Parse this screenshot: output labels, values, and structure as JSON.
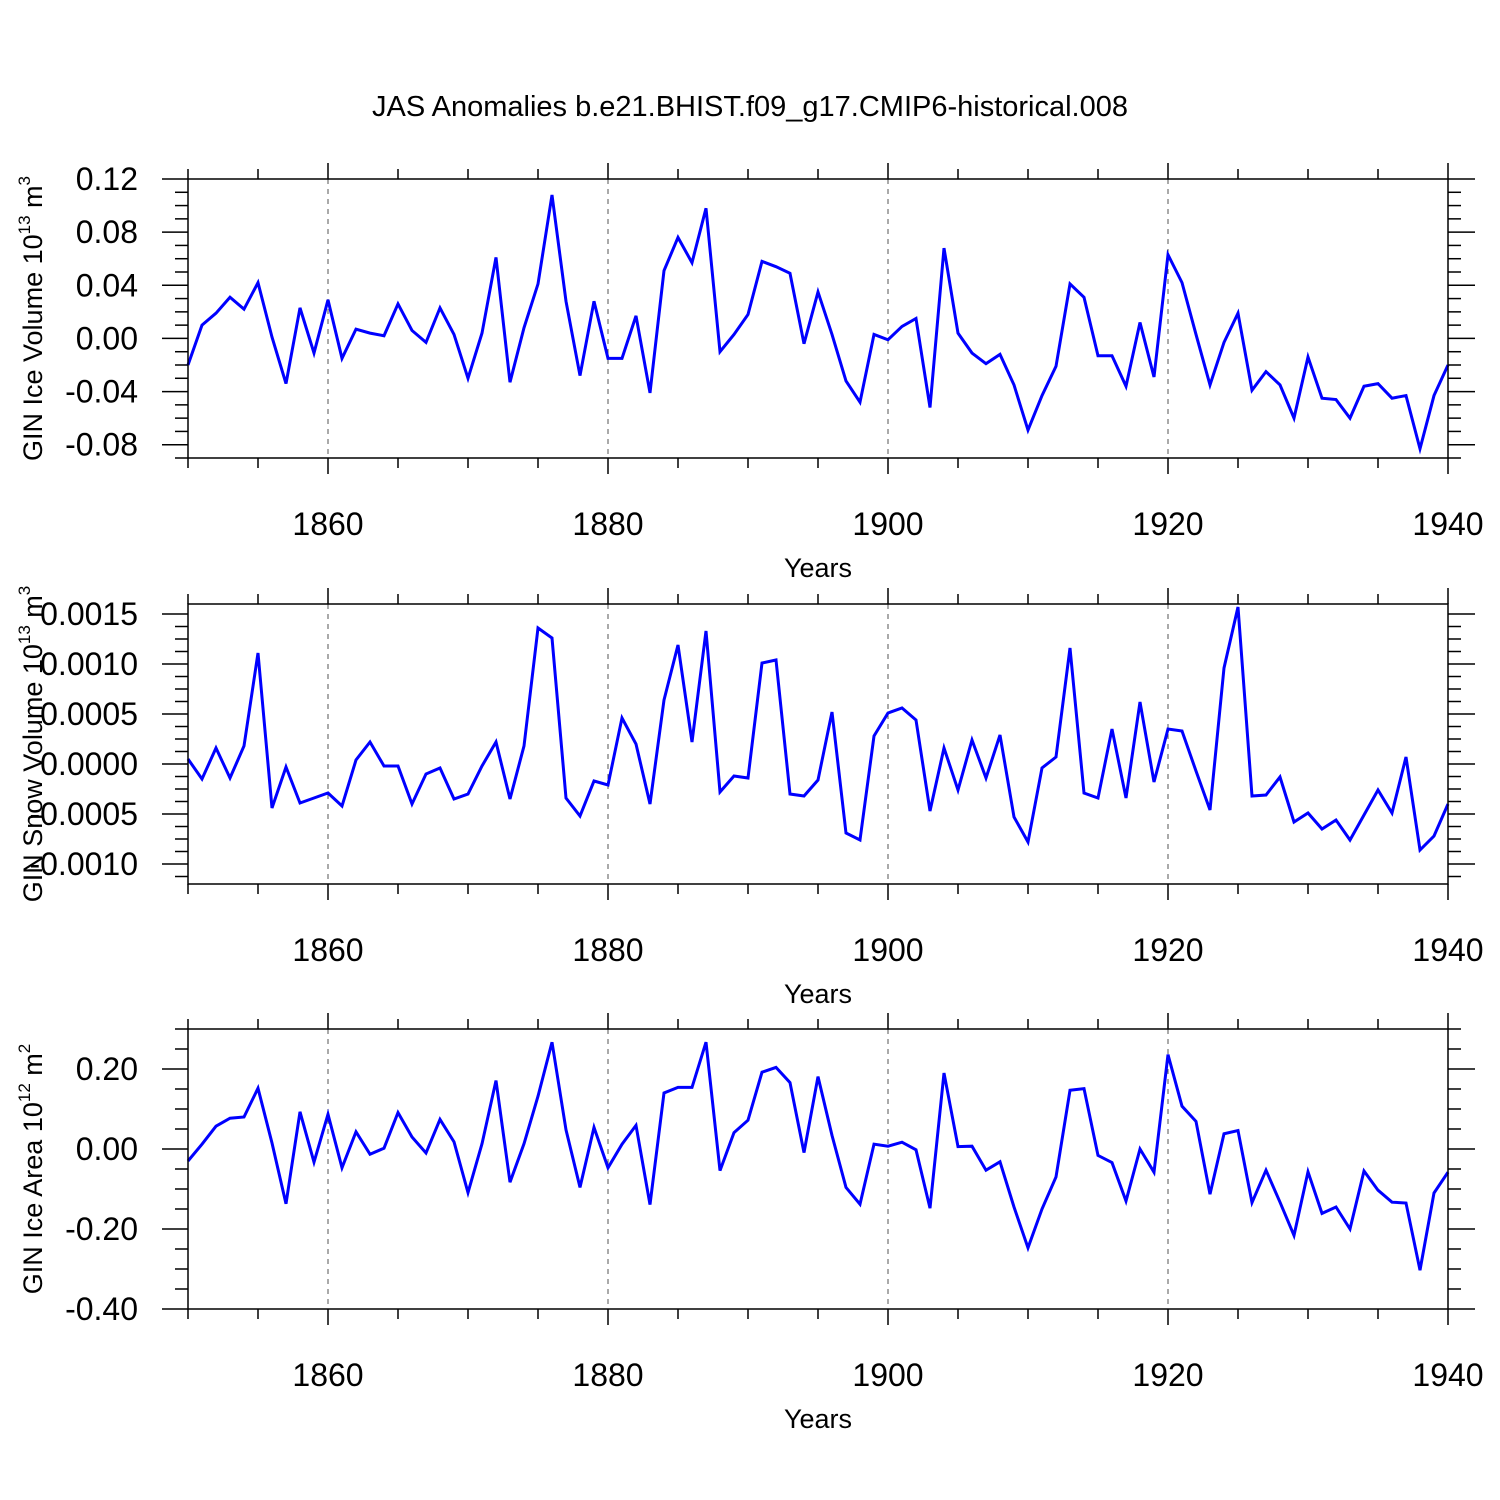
{
  "title": "JAS Anomalies b.e21.BHIST.f09_g17.CMIP6-historical.008",
  "colors": {
    "line": "#0000ff",
    "axis": "#000000",
    "grid": "#555555"
  },
  "chart_data": [
    {
      "type": "line",
      "xlabel": "Years",
      "ylabel": "GIN Ice Volume 10",
      "ylabel_exp": "13",
      "ylabel_unit": " m",
      "ylabel_unit_exp": "3",
      "xlim": [
        1850,
        1940
      ],
      "ylim": [
        -0.09,
        0.12
      ],
      "x_ticks": [
        "1860",
        "1880",
        "1900",
        "1920",
        "1940"
      ],
      "y_ticks": [
        "-0.08",
        "-0.04",
        "0.00",
        "0.04",
        "0.08",
        "0.12"
      ],
      "grid_x": [
        1860,
        1880,
        1900,
        1920
      ],
      "series": [
        {
          "name": "GIN Ice Volume",
          "start_year": 1850,
          "values": [
            -0.02,
            0.01,
            0.019,
            0.031,
            0.022,
            0.042,
            0.001,
            -0.034,
            0.023,
            -0.011,
            0.029,
            -0.015,
            0.007,
            0.004,
            0.002,
            0.026,
            0.006,
            -0.003,
            0.023,
            0.003,
            -0.03,
            0.004,
            0.061,
            -0.033,
            0.008,
            0.041,
            0.108,
            0.028,
            -0.028,
            0.028,
            -0.015,
            -0.015,
            0.017,
            -0.041,
            0.051,
            0.076,
            0.057,
            0.098,
            -0.01,
            0.003,
            0.018,
            0.058,
            0.054,
            0.049,
            -0.004,
            0.035,
            0.003,
            -0.032,
            -0.048,
            0.003,
            -0.001,
            0.009,
            0.015,
            -0.052,
            0.068,
            0.004,
            -0.011,
            -0.019,
            -0.012,
            -0.035,
            -0.069,
            -0.043,
            -0.021,
            0.041,
            0.031,
            -0.013,
            -0.013,
            -0.036,
            0.012,
            -0.029,
            0.063,
            0.042,
            0.003,
            -0.035,
            -0.003,
            0.019,
            -0.039,
            -0.025,
            -0.035,
            -0.06,
            -0.014,
            -0.045,
            -0.046,
            -0.06,
            -0.036,
            -0.034,
            -0.045,
            -0.043,
            -0.083,
            -0.043,
            -0.02
          ]
        }
      ]
    },
    {
      "type": "line",
      "xlabel": "Years",
      "ylabel": "GIN Snow Volume 10",
      "ylabel_exp": "13",
      "ylabel_unit": " m",
      "ylabel_unit_exp": "3",
      "xlim": [
        1850,
        1940
      ],
      "ylim": [
        -0.0012,
        0.0016
      ],
      "x_ticks": [
        "1860",
        "1880",
        "1900",
        "1920",
        "1940"
      ],
      "y_ticks": [
        "-0.0010",
        "-0.0005",
        "0.0000",
        "0.0005",
        "0.0010",
        "0.0015"
      ],
      "grid_x": [
        1860,
        1880,
        1900,
        1920
      ],
      "series": [
        {
          "name": "GIN Snow Volume",
          "start_year": 1850,
          "values": [
            5e-05,
            -0.00015,
            0.00016,
            -0.00014,
            0.00018,
            0.00111,
            -0.00044,
            -3e-05,
            -0.00039,
            -0.00034,
            -0.00029,
            -0.00042,
            4e-05,
            0.00022,
            -2e-05,
            -2e-05,
            -0.0004,
            -0.0001,
            -4e-05,
            -0.00035,
            -0.0003,
            -2e-05,
            0.00022,
            -0.00035,
            0.00018,
            0.00136,
            0.00126,
            -0.00034,
            -0.00052,
            -0.00017,
            -0.00021,
            0.00046,
            0.0002,
            -0.0004,
            0.00064,
            0.00119,
            0.00022,
            0.00133,
            -0.00028,
            -0.00012,
            -0.00014,
            0.00101,
            0.00104,
            -0.0003,
            -0.00032,
            -0.00016,
            0.00052,
            -0.00069,
            -0.00076,
            0.00028,
            0.00051,
            0.00056,
            0.00044,
            -0.00047,
            0.00016,
            -0.00026,
            0.00024,
            -0.00014,
            0.00029,
            -0.00053,
            -0.00078,
            -4e-05,
            7e-05,
            0.00116,
            -0.00029,
            -0.00034,
            0.00035,
            -0.00034,
            0.00062,
            -0.00018,
            0.00035,
            0.00033,
            -7e-05,
            -0.00046,
            0.00096,
            0.00157,
            -0.00032,
            -0.00031,
            -0.00013,
            -0.00058,
            -0.00049,
            -0.00065,
            -0.00056,
            -0.00076,
            -0.00051,
            -0.00026,
            -0.00049,
            7e-05,
            -0.00086,
            -0.00072,
            -0.0004
          ]
        }
      ]
    },
    {
      "type": "line",
      "xlabel": "Years",
      "ylabel": "GIN Ice Area 10",
      "ylabel_exp": "12",
      "ylabel_unit": " m",
      "ylabel_unit_exp": "2",
      "xlim": [
        1850,
        1940
      ],
      "ylim": [
        -0.4,
        0.3
      ],
      "x_ticks": [
        "1860",
        "1880",
        "1900",
        "1920",
        "1940"
      ],
      "y_ticks": [
        "-0.40",
        "-0.20",
        "0.00",
        "0.20"
      ],
      "grid_x": [
        1860,
        1880,
        1900,
        1920
      ],
      "series": [
        {
          "name": "GIN Ice Area",
          "start_year": 1850,
          "values": [
            -0.03,
            0.012,
            0.057,
            0.077,
            0.08,
            0.152,
            0.015,
            -0.137,
            0.093,
            -0.033,
            0.087,
            -0.047,
            0.043,
            -0.013,
            0.002,
            0.091,
            0.03,
            -0.01,
            0.074,
            0.018,
            -0.109,
            0.013,
            0.171,
            -0.083,
            0.013,
            0.132,
            0.267,
            0.048,
            -0.096,
            0.054,
            -0.047,
            0.012,
            0.059,
            -0.139,
            0.14,
            0.154,
            0.154,
            0.267,
            -0.054,
            0.041,
            0.072,
            0.192,
            0.204,
            0.166,
            -0.009,
            0.181,
            0.034,
            -0.096,
            -0.138,
            0.012,
            0.007,
            0.017,
            -0.002,
            -0.148,
            0.19,
            0.006,
            0.007,
            -0.053,
            -0.032,
            -0.145,
            -0.247,
            -0.15,
            -0.07,
            0.147,
            0.151,
            -0.016,
            -0.034,
            -0.13,
            0.0,
            -0.058,
            0.236,
            0.107,
            0.069,
            -0.113,
            0.038,
            0.046,
            -0.134,
            -0.053,
            -0.133,
            -0.216,
            -0.057,
            -0.161,
            -0.145,
            -0.2,
            -0.055,
            -0.103,
            -0.133,
            -0.135,
            -0.303,
            -0.11,
            -0.058
          ]
        }
      ]
    }
  ]
}
